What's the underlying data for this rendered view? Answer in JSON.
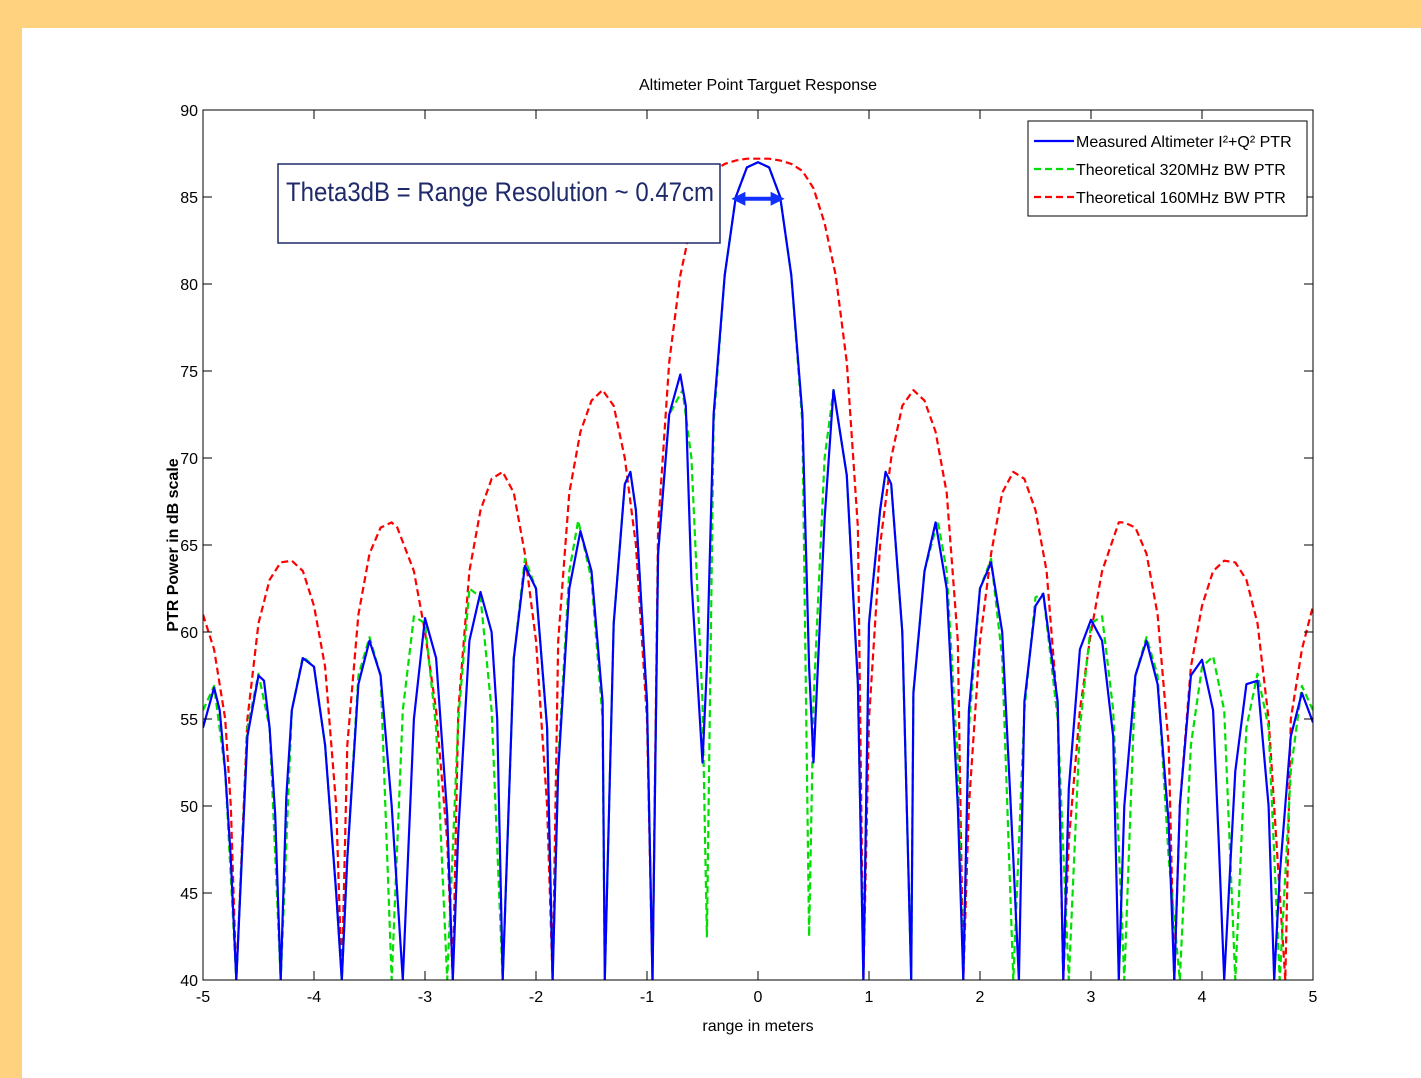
{
  "chart_data": {
    "type": "line",
    "title": "Altimeter Point Targuet Response",
    "xlabel": "range in meters",
    "ylabel": "PTR Power in dB scale",
    "xlim": [
      -5,
      5
    ],
    "ylim": [
      40,
      90
    ],
    "xticks": [
      -5,
      -4,
      -3,
      -2,
      -1,
      0,
      1,
      2,
      3,
      4,
      5
    ],
    "yticks": [
      40,
      45,
      50,
      55,
      60,
      65,
      70,
      75,
      80,
      85,
      90
    ],
    "legend_position": "top-right",
    "grid": false,
    "annotation": {
      "text": "Theta3dB = Range Resolution ~ 0.47cm",
      "arrow_x_range": [
        -0.24,
        0.24
      ],
      "arrow_y": 84.9,
      "arrow_color": "#1030ff"
    },
    "series": [
      {
        "name": "Measured Altimeter I²+Q² PTR",
        "color": "#0000ff",
        "style": "solid",
        "x": [
          -5.0,
          -4.9,
          -4.85,
          -4.8,
          -4.75,
          -4.7,
          -4.6,
          -4.5,
          -4.45,
          -4.4,
          -4.35,
          -4.3,
          -4.25,
          -4.2,
          -4.1,
          -4.0,
          -3.9,
          -3.8,
          -3.75,
          -3.7,
          -3.6,
          -3.5,
          -3.4,
          -3.3,
          -3.2,
          -3.1,
          -3.0,
          -2.9,
          -2.8,
          -2.75,
          -2.7,
          -2.6,
          -2.5,
          -2.4,
          -2.35,
          -2.3,
          -2.2,
          -2.1,
          -2.0,
          -1.9,
          -1.85,
          -1.8,
          -1.7,
          -1.6,
          -1.5,
          -1.4,
          -1.38,
          -1.3,
          -1.2,
          -1.15,
          -1.1,
          -1.0,
          -0.95,
          -0.9,
          -0.8,
          -0.7,
          -0.65,
          -0.6,
          -0.5,
          -0.46,
          -0.4,
          -0.3,
          -0.2,
          -0.1,
          0.0,
          0.1,
          0.2,
          0.3,
          0.4,
          0.46,
          0.5,
          0.6,
          0.68,
          0.8,
          0.9,
          0.95,
          1.0,
          1.1,
          1.15,
          1.2,
          1.3,
          1.38,
          1.4,
          1.5,
          1.6,
          1.7,
          1.8,
          1.85,
          1.9,
          2.0,
          2.1,
          2.2,
          2.3,
          2.35,
          2.4,
          2.5,
          2.57,
          2.7,
          2.75,
          2.8,
          2.9,
          3.0,
          3.1,
          3.2,
          3.25,
          3.3,
          3.4,
          3.5,
          3.6,
          3.7,
          3.75,
          3.8,
          3.9,
          4.0,
          4.1,
          4.15,
          4.2,
          4.3,
          4.4,
          4.5,
          4.6,
          4.65,
          4.7,
          4.8,
          4.9,
          5.0
        ],
        "y": [
          54.5,
          56.8,
          55.5,
          52.0,
          47.0,
          40.0,
          54.0,
          57.5,
          57.2,
          54.5,
          49.5,
          40.0,
          50.5,
          55.5,
          58.5,
          58.0,
          53.5,
          45.0,
          40.0,
          47.0,
          57.0,
          59.5,
          57.5,
          50.0,
          40.0,
          55.0,
          60.8,
          58.5,
          49.5,
          40.0,
          48.5,
          59.5,
          62.3,
          60.0,
          55.0,
          40.0,
          58.5,
          63.8,
          62.5,
          54.5,
          40.0,
          52.0,
          62.5,
          65.8,
          63.5,
          56.0,
          40.0,
          60.5,
          68.5,
          69.2,
          67.0,
          56.0,
          40.0,
          64.5,
          72.5,
          74.8,
          73.0,
          63.0,
          52.5,
          58.0,
          72.5,
          80.5,
          85.0,
          86.7,
          87.0,
          86.7,
          85.0,
          80.5,
          72.5,
          58.0,
          52.5,
          66.5,
          73.9,
          69.0,
          57.0,
          40.0,
          60.5,
          67.0,
          69.2,
          68.5,
          60.0,
          40.0,
          56.5,
          63.5,
          66.3,
          62.5,
          50.0,
          40.0,
          55.5,
          62.5,
          64.0,
          60.0,
          47.0,
          40.0,
          56.0,
          61.5,
          62.2,
          56.0,
          40.0,
          51.0,
          59.0,
          60.7,
          59.5,
          54.0,
          40.0,
          50.0,
          57.5,
          59.5,
          57.0,
          49.0,
          40.0,
          50.0,
          57.5,
          58.4,
          55.5,
          48.0,
          40.0,
          52.0,
          57.0,
          57.2,
          50.0,
          40.0,
          46.0,
          54.0,
          56.5,
          54.8
        ]
      },
      {
        "name": "Theoretical 320MHz BW PTR",
        "color": "#00e000",
        "style": "dashed",
        "x": [
          -5.0,
          -4.9,
          -4.8,
          -4.7,
          -4.6,
          -4.5,
          -4.4,
          -4.3,
          -4.2,
          -4.1,
          -4.0,
          -3.9,
          -3.8,
          -3.75,
          -3.7,
          -3.6,
          -3.5,
          -3.4,
          -3.3,
          -3.2,
          -3.1,
          -3.0,
          -2.9,
          -2.8,
          -2.7,
          -2.6,
          -2.5,
          -2.4,
          -2.3,
          -2.2,
          -2.1,
          -2.0,
          -1.9,
          -1.85,
          -1.8,
          -1.7,
          -1.62,
          -1.5,
          -1.4,
          -1.38,
          -1.3,
          -1.2,
          -1.15,
          -1.1,
          -1.0,
          -0.95,
          -0.9,
          -0.8,
          -0.68,
          -0.6,
          -0.5,
          -0.46,
          -0.4,
          -0.3,
          -0.2,
          -0.1,
          0.0,
          0.1,
          0.2,
          0.3,
          0.4,
          0.46,
          0.5,
          0.6,
          0.68,
          0.8,
          0.9,
          0.95,
          1.0,
          1.1,
          1.15,
          1.2,
          1.3,
          1.38,
          1.4,
          1.5,
          1.62,
          1.7,
          1.8,
          1.85,
          1.9,
          2.0,
          2.1,
          2.2,
          2.3,
          2.4,
          2.5,
          2.57,
          2.7,
          2.8,
          2.9,
          3.0,
          3.1,
          3.2,
          3.3,
          3.4,
          3.5,
          3.6,
          3.7,
          3.8,
          3.9,
          4.0,
          4.1,
          4.2,
          4.3,
          4.4,
          4.5,
          4.6,
          4.7,
          4.8,
          4.9,
          5.0
        ],
        "y": [
          55.5,
          56.9,
          52.0,
          40.0,
          54.5,
          57.6,
          54.5,
          40.0,
          55.5,
          58.6,
          58.0,
          53.5,
          45.0,
          40.0,
          47.0,
          57.5,
          59.7,
          57.5,
          40.0,
          55.5,
          60.9,
          60.5,
          54.5,
          40.0,
          55.0,
          62.5,
          62.0,
          55.5,
          40.0,
          58.5,
          64.2,
          62.5,
          54.5,
          40.0,
          52.5,
          63.5,
          66.4,
          63.0,
          55.0,
          40.0,
          60.5,
          68.5,
          69.2,
          67.0,
          56.0,
          40.0,
          64.5,
          72.5,
          73.9,
          70.0,
          56.0,
          42.5,
          72.0,
          80.5,
          85.0,
          86.7,
          87.0,
          86.7,
          85.0,
          80.5,
          72.0,
          42.5,
          56.0,
          70.0,
          73.9,
          69.0,
          57.0,
          40.0,
          60.5,
          67.0,
          69.2,
          68.5,
          60.0,
          40.0,
          56.5,
          63.5,
          66.4,
          63.5,
          52.5,
          40.0,
          54.5,
          62.5,
          64.2,
          58.5,
          40.0,
          55.5,
          62.0,
          62.2,
          55.0,
          40.0,
          54.5,
          60.5,
          60.9,
          55.5,
          40.0,
          57.5,
          59.7,
          57.5,
          47.0,
          40.0,
          53.5,
          58.0,
          58.6,
          55.5,
          40.0,
          54.5,
          57.6,
          54.5,
          40.0,
          52.0,
          56.9,
          55.5
        ]
      },
      {
        "name": "Theoretical 160MHz BW PTR",
        "color": "#ff0000",
        "style": "dashed",
        "x": [
          -5.0,
          -4.9,
          -4.8,
          -4.75,
          -4.7,
          -4.6,
          -4.5,
          -4.4,
          -4.3,
          -4.2,
          -4.1,
          -4.0,
          -3.9,
          -3.8,
          -3.75,
          -3.7,
          -3.6,
          -3.5,
          -3.4,
          -3.3,
          -3.25,
          -3.1,
          -3.0,
          -2.9,
          -2.8,
          -2.75,
          -2.7,
          -2.6,
          -2.5,
          -2.4,
          -2.3,
          -2.2,
          -2.1,
          -2.0,
          -1.9,
          -1.85,
          -1.8,
          -1.7,
          -1.6,
          -1.5,
          -1.4,
          -1.3,
          -1.2,
          -1.1,
          -1.0,
          -0.95,
          -0.9,
          -0.8,
          -0.7,
          -0.6,
          -0.5,
          -0.4,
          -0.3,
          -0.2,
          -0.1,
          0.0,
          0.1,
          0.2,
          0.3,
          0.4,
          0.5,
          0.6,
          0.7,
          0.8,
          0.9,
          0.95,
          1.0,
          1.1,
          1.2,
          1.3,
          1.4,
          1.5,
          1.6,
          1.7,
          1.8,
          1.85,
          1.9,
          2.0,
          2.1,
          2.2,
          2.3,
          2.4,
          2.5,
          2.6,
          2.7,
          2.75,
          2.8,
          2.9,
          3.0,
          3.1,
          3.25,
          3.3,
          3.4,
          3.5,
          3.6,
          3.7,
          3.75,
          3.8,
          3.9,
          4.0,
          4.1,
          4.2,
          4.3,
          4.4,
          4.5,
          4.6,
          4.7,
          4.75,
          4.8,
          4.9,
          5.0
        ],
        "y": [
          61.0,
          59.0,
          55.0,
          50.0,
          40.0,
          55.0,
          60.5,
          63.0,
          64.0,
          64.1,
          63.5,
          61.5,
          58.0,
          50.0,
          40.0,
          53.5,
          61.0,
          64.5,
          66.0,
          66.3,
          66.0,
          63.5,
          60.0,
          55.5,
          48.0,
          40.0,
          55.5,
          63.5,
          67.0,
          68.8,
          69.2,
          68.0,
          64.5,
          59.5,
          50.0,
          40.0,
          59.5,
          68.0,
          71.5,
          73.3,
          73.9,
          73.0,
          70.0,
          65.0,
          55.0,
          40.0,
          66.0,
          75.5,
          80.5,
          83.5,
          85.5,
          86.5,
          86.9,
          87.1,
          87.2,
          87.2,
          87.2,
          87.1,
          86.9,
          86.5,
          85.5,
          83.5,
          80.5,
          75.5,
          66.0,
          40.0,
          55.0,
          65.0,
          70.0,
          73.0,
          73.9,
          73.3,
          71.5,
          68.0,
          59.5,
          40.0,
          50.0,
          59.5,
          64.5,
          68.0,
          69.2,
          68.8,
          67.0,
          63.5,
          55.5,
          40.0,
          48.0,
          55.5,
          60.0,
          63.5,
          66.3,
          66.3,
          66.0,
          64.5,
          61.0,
          53.5,
          40.0,
          50.0,
          58.0,
          61.5,
          63.5,
          64.1,
          64.0,
          63.0,
          60.5,
          55.0,
          45.0,
          40.0,
          55.0,
          59.0,
          61.5
        ]
      }
    ]
  }
}
